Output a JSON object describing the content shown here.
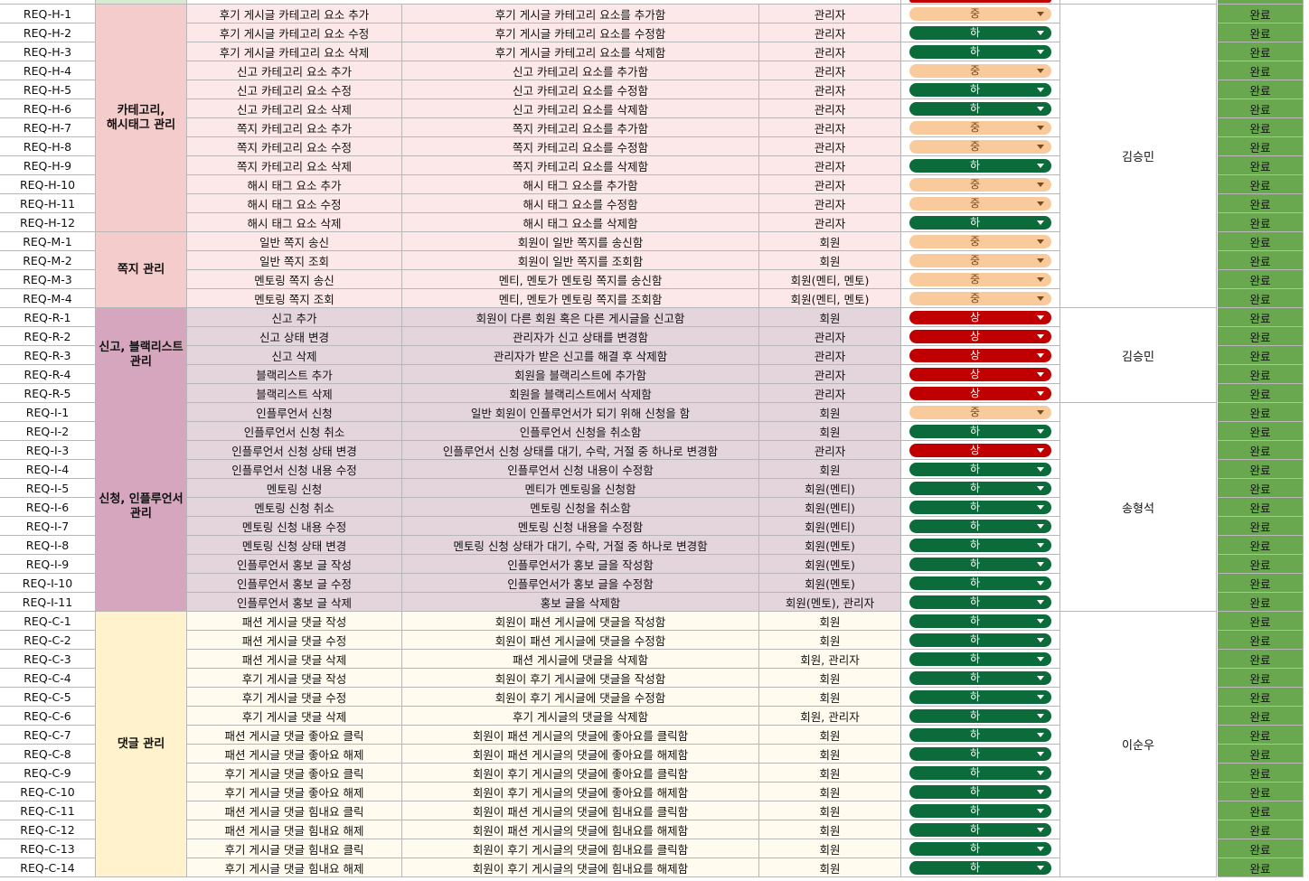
{
  "priority_labels": {
    "mid": "중",
    "low": "하",
    "high": "상"
  },
  "status_label": "완료",
  "groups": [
    {
      "name": "카테고리,\n해시태그 관리",
      "bg": "#f4cccc",
      "rowBg": "#fce8e8",
      "owner": "김승민",
      "rows": [
        {
          "id": "REQ-H-1",
          "func": "후기 게시글 카테고리 요소 추가",
          "desc": "후기 게시글 카테고리 요소를 추가함",
          "target": "관리자",
          "priority": "mid"
        },
        {
          "id": "REQ-H-2",
          "func": "후기 게시글 카테고리 요소 수정",
          "desc": "후기 게시글 카테고리 요소를 수정함",
          "target": "관리자",
          "priority": "low"
        },
        {
          "id": "REQ-H-3",
          "func": "후기 게시글 카테고리 요소 삭제",
          "desc": "후기 게시글 카테고리 요소를 삭제함",
          "target": "관리자",
          "priority": "low"
        },
        {
          "id": "REQ-H-4",
          "func": "신고 카테고리 요소 추가",
          "desc": "신고 카테고리 요소를 추가함",
          "target": "관리자",
          "priority": "mid"
        },
        {
          "id": "REQ-H-5",
          "func": "신고 카테고리 요소 수정",
          "desc": "신고 카테고리 요소를 수정함",
          "target": "관리자",
          "priority": "low"
        },
        {
          "id": "REQ-H-6",
          "func": "신고 카테고리 요소 삭제",
          "desc": "신고 카테고리 요소를 삭제함",
          "target": "관리자",
          "priority": "low"
        },
        {
          "id": "REQ-H-7",
          "func": "쪽지 카테고리 요소 추가",
          "desc": "쪽지 카테고리 요소를 추가함",
          "target": "관리자",
          "priority": "mid"
        },
        {
          "id": "REQ-H-8",
          "func": "쪽지 카테고리 요소 수정",
          "desc": "쪽지 카테고리 요소를 수정함",
          "target": "관리자",
          "priority": "mid"
        },
        {
          "id": "REQ-H-9",
          "func": "쪽지 카테고리 요소 삭제",
          "desc": "쪽지 카테고리 요소를 삭제함",
          "target": "관리자",
          "priority": "low"
        },
        {
          "id": "REQ-H-10",
          "func": "해시 태그 요소 추가",
          "desc": "해시 태그 요소를 추가함",
          "target": "관리자",
          "priority": "mid"
        },
        {
          "id": "REQ-H-11",
          "func": "해시 태그 요소 수정",
          "desc": "해시 태그 요소를 수정함",
          "target": "관리자",
          "priority": "mid"
        },
        {
          "id": "REQ-H-12",
          "func": "해시 태그 요소 삭제",
          "desc": "해시 태그 요소를 삭제함",
          "target": "관리자",
          "priority": "low"
        }
      ]
    },
    {
      "name": "쪽지 관리",
      "bg": "#f4cccc",
      "rowBg": "#fce8e8",
      "owner": "",
      "rows": [
        {
          "id": "REQ-M-1",
          "func": "일반 쪽지 송신",
          "desc": "회원이 일반 쪽지를 송신함",
          "target": "회원",
          "priority": "mid"
        },
        {
          "id": "REQ-M-2",
          "func": "일반 쪽지 조회",
          "desc": "회원이 일반 쪽지를 조회함",
          "target": "회원",
          "priority": "mid"
        },
        {
          "id": "REQ-M-3",
          "func": "멘토링 쪽지 송신",
          "desc": "멘티, 멘토가 멘토링 쪽지를 송신함",
          "target": "회원(멘티, 멘토)",
          "priority": "mid"
        },
        {
          "id": "REQ-M-4",
          "func": "멘토링 쪽지 조회",
          "desc": "멘티, 멘토가 멘토링 쪽지를 조회함",
          "target": "회원(멘티, 멘토)",
          "priority": "mid"
        }
      ]
    },
    {
      "name": "신고, 블랙리스트\n관리",
      "bg": "#d5a6bd",
      "rowBg": "#e4d4dc",
      "owner": "김승민",
      "rows": [
        {
          "id": "REQ-R-1",
          "func": "신고 추가",
          "desc": "회원이 다른 회원 혹은 다른 게시글을 신고함",
          "target": "회원",
          "priority": "high"
        },
        {
          "id": "REQ-R-2",
          "func": "신고 상태 변경",
          "desc": "관리자가 신고 상태를 변경함",
          "target": "관리자",
          "priority": "high"
        },
        {
          "id": "REQ-R-3",
          "func": "신고 삭제",
          "desc": "관리자가 받은 신고를 해결 후 삭제함",
          "target": "관리자",
          "priority": "high"
        },
        {
          "id": "REQ-R-4",
          "func": "블랙리스트 추가",
          "desc": "회원을 블랙리스트에 추가함",
          "target": "관리자",
          "priority": "high"
        },
        {
          "id": "REQ-R-5",
          "func": "블랙리스트 삭제",
          "desc": "회원을 블랙리스트에서 삭제함",
          "target": "관리자",
          "priority": "high"
        }
      ]
    },
    {
      "name": "신청, 인플루언서\n관리",
      "bg": "#d5a6bd",
      "rowBg": "#e4d4dc",
      "owner": "송형석",
      "rows": [
        {
          "id": "REQ-I-1",
          "func": "인플루언서 신청",
          "desc": "일반 회원이 인플루언서가 되기 위해 신청을 함",
          "target": "회원",
          "priority": "mid"
        },
        {
          "id": "REQ-I-2",
          "func": "인플루언서 신청 취소",
          "desc": "인플루언서 신청을 취소함",
          "target": "회원",
          "priority": "low"
        },
        {
          "id": "REQ-I-3",
          "func": "인플루언서 신청 상태 변경",
          "desc": "인플루언서 신청 상태를 대기, 수락, 거절 중 하나로 변경함",
          "target": "관리자",
          "priority": "high"
        },
        {
          "id": "REQ-I-4",
          "func": "인플루언서 신청 내용 수정",
          "desc": "인플루언서 신청 내용이 수정함",
          "target": "회원",
          "priority": "low"
        },
        {
          "id": "REQ-I-5",
          "func": "멘토링 신청",
          "desc": "멘티가 멘토링을 신청함",
          "target": "회원(멘티)",
          "priority": "low"
        },
        {
          "id": "REQ-I-6",
          "func": "멘토링 신청 취소",
          "desc": "멘토링 신청을 취소함",
          "target": "회원(멘티)",
          "priority": "low"
        },
        {
          "id": "REQ-I-7",
          "func": "멘토링 신청 내용 수정",
          "desc": "멘토링 신청 내용을 수정함",
          "target": "회원(멘티)",
          "priority": "low"
        },
        {
          "id": "REQ-I-8",
          "func": "멘토링 신청 상태 변경",
          "desc": "멘토링 신청 상태가 대기, 수락, 거절 중 하나로 변경함",
          "target": "회원(멘토)",
          "priority": "low"
        },
        {
          "id": "REQ-I-9",
          "func": "인플루언서 홍보 글 작성",
          "desc": "인플루언서가 홍보 글을 작성함",
          "target": "회원(멘토)",
          "priority": "low"
        },
        {
          "id": "REQ-I-10",
          "func": "인플루언서 홍보 글 수정",
          "desc": "인플루언서가 홍보 글을 수정함",
          "target": "회원(멘토)",
          "priority": "low"
        },
        {
          "id": "REQ-I-11",
          "func": "인플루언서 홍보 글 삭제",
          "desc": "홍보 글을 삭제함",
          "target": "회원(멘토), 관리자",
          "priority": "low"
        }
      ]
    },
    {
      "name": "댓글 관리",
      "bg": "#fff2cc",
      "rowBg": "#fffbee",
      "owner": "이순우",
      "rows": [
        {
          "id": "REQ-C-1",
          "func": "패션 게시글 댓글 작성",
          "desc": "회원이 패션 게시글에 댓글을 작성함",
          "target": "회원",
          "priority": "low"
        },
        {
          "id": "REQ-C-2",
          "func": "패션 게시글 댓글 수정",
          "desc": "회원이 패션 게시글에 댓글을 수정함",
          "target": "회원",
          "priority": "low"
        },
        {
          "id": "REQ-C-3",
          "func": "패션 게시글 댓글 삭제",
          "desc": "패션 게시글에 댓글을 삭제함",
          "target": "회원, 관리자",
          "priority": "low"
        },
        {
          "id": "REQ-C-4",
          "func": "후기 게시글 댓글 작성",
          "desc": "회원이 후기 게시글에 댓글을 작성함",
          "target": "회원",
          "priority": "low"
        },
        {
          "id": "REQ-C-5",
          "func": "후기 게시글 댓글 수정",
          "desc": "회원이 후기 게시글에 댓글을 수정함",
          "target": "회원",
          "priority": "low"
        },
        {
          "id": "REQ-C-6",
          "func": "후기 게시글 댓글 삭제",
          "desc": "후기 게시글의 댓글을 삭제함",
          "target": "회원, 관리자",
          "priority": "low"
        },
        {
          "id": "REQ-C-7",
          "func": "패션 게시글 댓글 좋아요 클릭",
          "desc": "회원이 패션 게시글의 댓글에 좋아요를 클릭함",
          "target": "회원",
          "priority": "low"
        },
        {
          "id": "REQ-C-8",
          "func": "패션 게시글 댓글 좋아요 해제",
          "desc": "회원이 패션 게시글의 댓글에 좋아요를 해제함",
          "target": "회원",
          "priority": "low"
        },
        {
          "id": "REQ-C-9",
          "func": "후기 게시글 댓글 좋아요 클릭",
          "desc": "회원이 후기 게시글의 댓글에 좋아요를 클릭함",
          "target": "회원",
          "priority": "low"
        },
        {
          "id": "REQ-C-10",
          "func": "후기 게시글 댓글 좋아요 해제",
          "desc": "회원이 후기 게시글의 댓글에 좋아요를 해제함",
          "target": "회원",
          "priority": "low"
        },
        {
          "id": "REQ-C-11",
          "func": "패션 게시글 댓글 힘내요 클릭",
          "desc": "회원이 패션 게시글의 댓글에 힘내요를 클릭함",
          "target": "회원",
          "priority": "low"
        },
        {
          "id": "REQ-C-12",
          "func": "패션 게시글 댓글 힘내요 해제",
          "desc": "회원이 패션 게시글의 댓글에 힘내요를 해제함",
          "target": "회원",
          "priority": "low"
        },
        {
          "id": "REQ-C-13",
          "func": "후기 게시글 댓글 힘내요 클릭",
          "desc": "회원이 후기 게시글의 댓글에 힘내요를 클릭함",
          "target": "회원",
          "priority": "low"
        },
        {
          "id": "REQ-C-14",
          "func": "후기 게시글 댓글 힘내요 해제",
          "desc": "회원이 후기 게시글의 댓글에 힘내요를 해제함",
          "target": "회원",
          "priority": "low"
        }
      ]
    }
  ],
  "owner_blocks": [
    {
      "owner": "김승민",
      "groups": [
        0,
        1
      ]
    },
    {
      "owner": "김승민",
      "groups": [
        2
      ]
    },
    {
      "owner": "송형석",
      "groups": [
        3
      ]
    },
    {
      "owner": "이순우",
      "groups": [
        4
      ]
    }
  ],
  "colors": {
    "status": "#6aa84f",
    "mid": "#f9cb9c",
    "low": "#0b6b3a",
    "high": "#c00000",
    "grid": "#b7b7b7"
  }
}
